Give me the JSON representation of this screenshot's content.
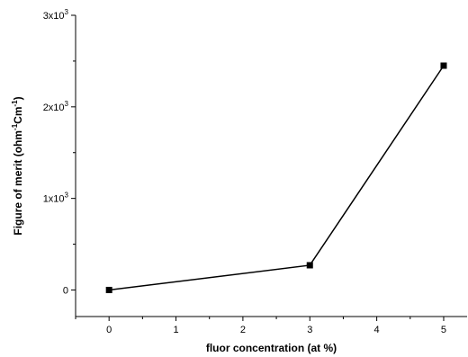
{
  "chart_data": {
    "type": "line",
    "xlabel": "fluor concentration (at %)",
    "ylabel_parts": [
      "Figure of merit (ohm",
      "-1",
      "Cm",
      "-1",
      ")"
    ],
    "x_ticks": [
      0,
      1,
      2,
      3,
      4,
      5
    ],
    "x_tick_labels": [
      "0",
      "1",
      "2",
      "3",
      "4",
      "5"
    ],
    "y_ticks": [
      0,
      1000,
      2000,
      3000
    ],
    "y_tick_labels": [
      {
        "base": "0",
        "exp": ""
      },
      {
        "base": "1x10",
        "exp": "3"
      },
      {
        "base": "2x10",
        "exp": "3"
      },
      {
        "base": "3x10",
        "exp": "3"
      }
    ],
    "xlim": [
      -0.5,
      5.35
    ],
    "ylim": [
      -290,
      3000
    ],
    "grid": false,
    "series": [
      {
        "x": [
          0,
          3,
          5
        ],
        "y": [
          0,
          270,
          2450
        ],
        "marker": "square",
        "color": "#000000"
      }
    ]
  }
}
